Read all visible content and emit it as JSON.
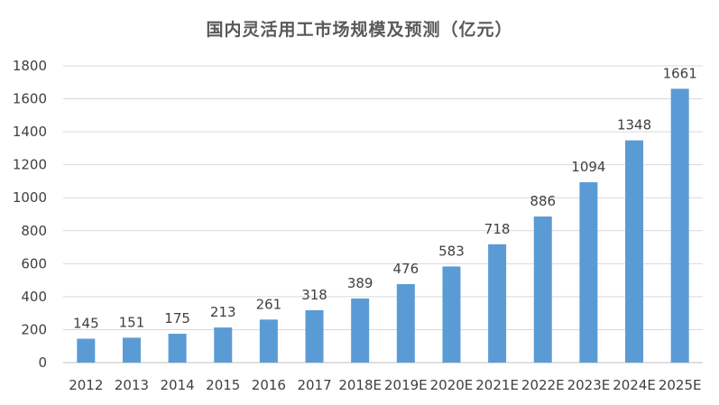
{
  "chart_data": {
    "type": "bar",
    "title": "国内灵活用工市场规模及预测（亿元）",
    "categories": [
      "2012",
      "2013",
      "2014",
      "2015",
      "2016",
      "2017",
      "2018E",
      "2019E",
      "2020E",
      "2021E",
      "2022E",
      "2023E",
      "2024E",
      "2025E"
    ],
    "values": [
      145,
      151,
      175,
      213,
      261,
      318,
      389,
      476,
      583,
      718,
      886,
      1094,
      1348,
      1661
    ],
    "ylim": [
      0,
      1800
    ],
    "yticks": [
      0,
      200,
      400,
      600,
      800,
      1000,
      1200,
      1400,
      1600,
      1800
    ],
    "grid": true,
    "bar_color": "#5B9BD5",
    "grid_color": "#D9D9D9",
    "legend": "none"
  }
}
